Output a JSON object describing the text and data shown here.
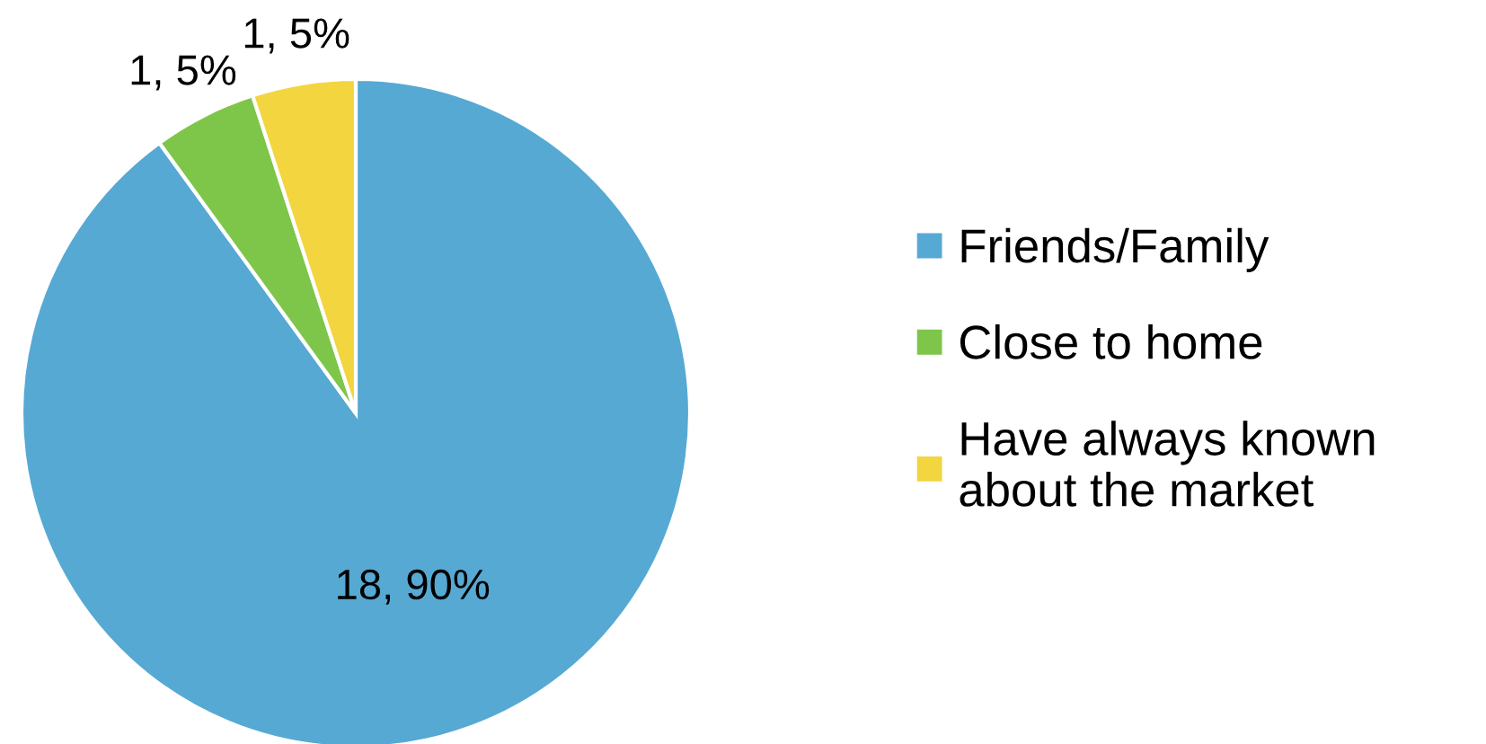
{
  "chart_data": {
    "type": "pie",
    "categories": [
      "Friends/Family",
      "Close to home",
      "Have always known\nabout the market"
    ],
    "values": [
      18,
      1,
      1
    ],
    "colors": [
      "#56a9d3",
      "#7ec64a",
      "#f3d53f"
    ],
    "value_labels": [
      "18, 90%",
      "1, 5%",
      "1, 5%"
    ],
    "legend": "right"
  }
}
